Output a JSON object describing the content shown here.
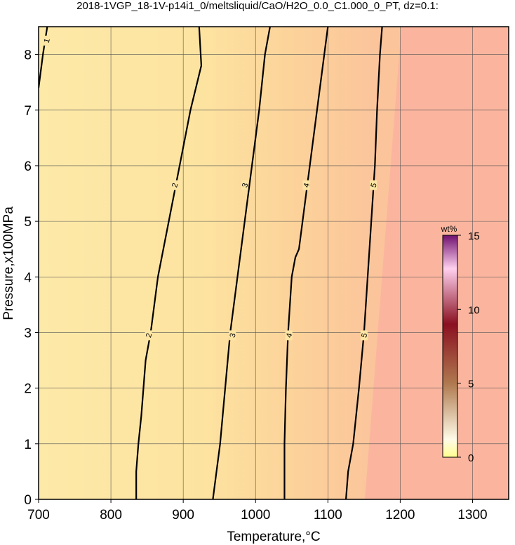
{
  "chart_data": {
    "type": "contour",
    "title": "2018-1VGP_18-1V-p14i1_0/meltsliquid/CaO/H2O_0.0_C1.000_0_PT, dz=0.1:",
    "x_label": "Temperature,°C",
    "y_label": "Pressure,x100MPa",
    "xlim": [
      700,
      1350
    ],
    "ylim": [
      0,
      8.5
    ],
    "xticks": [
      700,
      800,
      900,
      1000,
      1100,
      1200,
      1300
    ],
    "yticks": [
      0,
      1,
      2,
      3,
      4,
      5,
      6,
      7,
      8
    ],
    "grid": true,
    "contours": [
      {
        "level": 1,
        "x": [
          712,
          706,
          700
        ],
        "y": [
          8.5,
          8.0,
          7.4
        ],
        "label_at": [
          [
            711,
            8.25
          ]
        ]
      },
      {
        "level": 2,
        "x": [
          835,
          835,
          838,
          842,
          848,
          855,
          865,
          880,
          895,
          910,
          925,
          922
        ],
        "y": [
          0,
          0.5,
          1,
          1.5,
          2.5,
          3,
          4,
          5,
          6,
          7,
          7.8,
          8.5
        ],
        "label_at": [
          [
            852,
            2.95
          ],
          [
            888,
            5.65
          ]
        ]
      },
      {
        "level": 3,
        "x": [
          941,
          946,
          951,
          958,
          965,
          975,
          985,
          995,
          1005,
          1013,
          1020
        ],
        "y": [
          0,
          0.5,
          1,
          2,
          3,
          4,
          5,
          6,
          7,
          8,
          8.5
        ],
        "label_at": [
          [
            968,
            2.95
          ],
          [
            985,
            5.65
          ]
        ]
      },
      {
        "level": 4,
        "x": [
          1040,
          1040,
          1042,
          1045,
          1050,
          1055,
          1060,
          1065,
          1075,
          1085,
          1095,
          1100
        ],
        "y": [
          0,
          1,
          2,
          3,
          4,
          4.35,
          4.5,
          5,
          6,
          7,
          8,
          8.5
        ],
        "label_at": [
          [
            1046,
            2.95
          ],
          [
            1070,
            5.65
          ]
        ]
      },
      {
        "level": 5,
        "x": [
          1125,
          1128,
          1135,
          1143,
          1150,
          1155,
          1160,
          1165,
          1168,
          1172,
          1175
        ],
        "y": [
          0,
          0.5,
          1,
          2,
          3,
          4,
          5,
          6,
          7,
          8,
          8.5
        ],
        "label_at": [
          [
            1150,
            2.95
          ],
          [
            1163,
            5.65
          ]
        ]
      }
    ],
    "colorbar": {
      "label": "wt%",
      "ticks": [
        0,
        5,
        10,
        15
      ],
      "lim": [
        0,
        15
      ]
    }
  }
}
